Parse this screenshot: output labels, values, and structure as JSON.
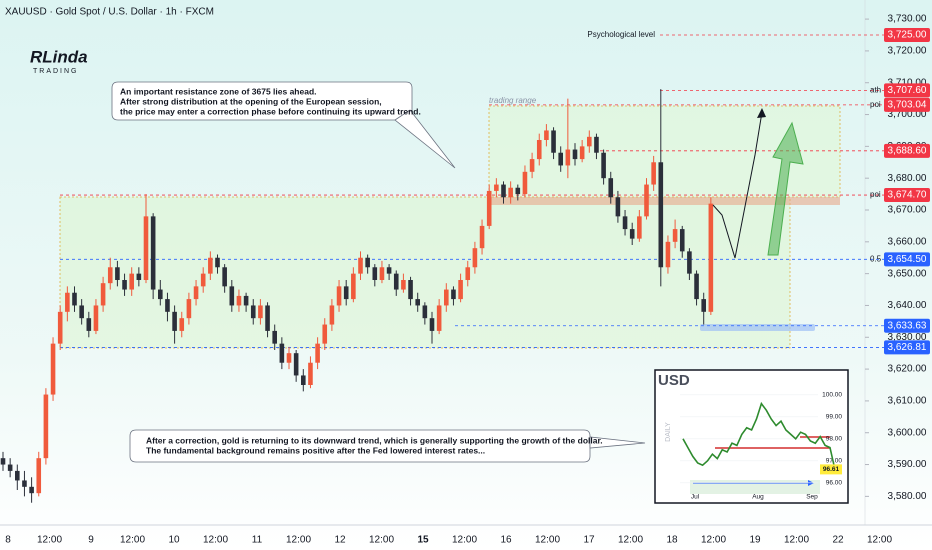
{
  "logo": {
    "name": "RLinda",
    "tagline": "TRADING"
  },
  "chart_data": [
    {
      "type": "candlestick",
      "title": "XAUUSD · Gold Spot / U.S. Dollar · 1h · FXCM",
      "up_color": "#f05a3c",
      "down_color": "#2b2f3a",
      "ylim": [
        3571,
        3736
      ],
      "yticks": [
        {
          "value": 3580,
          "label": "3,580.00"
        },
        {
          "value": 3590,
          "label": "3,590.00"
        },
        {
          "value": 3600,
          "label": "3,600.00"
        },
        {
          "value": 3610,
          "label": "3,610.00"
        },
        {
          "value": 3620,
          "label": "3,620.00"
        },
        {
          "value": 3630,
          "label": "3,630.00"
        },
        {
          "value": 3640,
          "label": "3,640.00"
        },
        {
          "value": 3650,
          "label": "3,650.00"
        },
        {
          "value": 3660,
          "label": "3,660.00"
        },
        {
          "value": 3670,
          "label": "3,670.00"
        },
        {
          "value": 3680,
          "label": "3,680.00"
        },
        {
          "value": 3690,
          "label": "3,690.00"
        },
        {
          "value": 3700,
          "label": "3,700.00"
        },
        {
          "value": 3710,
          "label": "3,710.00"
        },
        {
          "value": 3720,
          "label": "3,720.00"
        },
        {
          "value": 3730,
          "label": "3,730.00"
        }
      ],
      "time_labels": [
        "8",
        "12:00",
        "9",
        "12:00",
        "10",
        "12:00",
        "11",
        "12:00",
        "12",
        "12:00",
        "15",
        "12:00",
        "16",
        "12:00",
        "17",
        "12:00",
        "18",
        "12:00",
        "19",
        "12:00",
        "22",
        "12:00"
      ],
      "candles": [
        [
          3592,
          3594,
          3588,
          3590
        ],
        [
          3590,
          3592,
          3586,
          3588
        ],
        [
          3588,
          3590,
          3582,
          3585
        ],
        [
          3585,
          3588,
          3580,
          3583
        ],
        [
          3583,
          3586,
          3578,
          3581
        ],
        [
          3581,
          3594,
          3580,
          3592
        ],
        [
          3592,
          3614,
          3590,
          3612
        ],
        [
          3612,
          3630,
          3610,
          3628
        ],
        [
          3628,
          3640,
          3626,
          3638
        ],
        [
          3638,
          3646,
          3635,
          3644
        ],
        [
          3644,
          3646,
          3638,
          3640
        ],
        [
          3640,
          3642,
          3634,
          3636
        ],
        [
          3636,
          3638,
          3630,
          3632
        ],
        [
          3632,
          3642,
          3631,
          3640
        ],
        [
          3640,
          3649,
          3638,
          3647
        ],
        [
          3647,
          3655,
          3645,
          3652
        ],
        [
          3652,
          3654,
          3646,
          3648
        ],
        [
          3648,
          3650,
          3643,
          3645
        ],
        [
          3645,
          3652,
          3643,
          3650
        ],
        [
          3650,
          3652,
          3646,
          3648
        ],
        [
          3648,
          3675,
          3647,
          3668
        ],
        [
          3668,
          3669,
          3642,
          3645
        ],
        [
          3645,
          3648,
          3640,
          3642
        ],
        [
          3642,
          3644,
          3635,
          3638
        ],
        [
          3638,
          3640,
          3628,
          3632
        ],
        [
          3632,
          3638,
          3630,
          3636
        ],
        [
          3636,
          3644,
          3634,
          3642
        ],
        [
          3642,
          3648,
          3640,
          3646
        ],
        [
          3646,
          3652,
          3644,
          3650
        ],
        [
          3650,
          3657,
          3648,
          3655
        ],
        [
          3655,
          3656,
          3650,
          3652
        ],
        [
          3652,
          3653,
          3644,
          3646
        ],
        [
          3646,
          3648,
          3638,
          3640
        ],
        [
          3640,
          3645,
          3638,
          3643
        ],
        [
          3643,
          3644,
          3638,
          3640
        ],
        [
          3640,
          3642,
          3634,
          3636
        ],
        [
          3636,
          3642,
          3634,
          3640
        ],
        [
          3640,
          3641,
          3630,
          3632
        ],
        [
          3632,
          3634,
          3626,
          3628
        ],
        [
          3628,
          3630,
          3620,
          3622
        ],
        [
          3622,
          3627,
          3620,
          3625
        ],
        [
          3625,
          3626,
          3616,
          3618
        ],
        [
          3618,
          3620,
          3613,
          3615
        ],
        [
          3615,
          3624,
          3614,
          3622
        ],
        [
          3622,
          3630,
          3620,
          3628
        ],
        [
          3628,
          3636,
          3626,
          3634
        ],
        [
          3634,
          3642,
          3632,
          3640
        ],
        [
          3640,
          3648,
          3638,
          3646
        ],
        [
          3646,
          3648,
          3640,
          3642
        ],
        [
          3642,
          3652,
          3641,
          3650
        ],
        [
          3650,
          3657,
          3648,
          3655
        ],
        [
          3655,
          3656,
          3650,
          3652
        ],
        [
          3652,
          3653,
          3646,
          3648
        ],
        [
          3648,
          3654,
          3647,
          3652
        ],
        [
          3652,
          3653,
          3648,
          3650
        ],
        [
          3650,
          3651,
          3643,
          3645
        ],
        [
          3645,
          3650,
          3644,
          3648
        ],
        [
          3648,
          3649,
          3640,
          3642
        ],
        [
          3642,
          3644,
          3638,
          3640
        ],
        [
          3640,
          3641,
          3634,
          3636
        ],
        [
          3636,
          3638,
          3628,
          3632
        ],
        [
          3632,
          3642,
          3631,
          3640
        ],
        [
          3640,
          3647,
          3638,
          3645
        ],
        [
          3645,
          3646,
          3640,
          3642
        ],
        [
          3642,
          3650,
          3641,
          3648
        ],
        [
          3648,
          3654,
          3646,
          3652
        ],
        [
          3652,
          3660,
          3650,
          3658
        ],
        [
          3658,
          3667,
          3656,
          3665
        ],
        [
          3665,
          3678,
          3664,
          3676
        ],
        [
          3676,
          3680,
          3674,
          3678
        ],
        [
          3678,
          3679,
          3672,
          3674
        ],
        [
          3674,
          3679,
          3672,
          3677
        ],
        [
          3677,
          3678,
          3673,
          3675
        ],
        [
          3675,
          3684,
          3674,
          3682
        ],
        [
          3682,
          3688,
          3680,
          3686
        ],
        [
          3686,
          3694,
          3684,
          3692
        ],
        [
          3692,
          3697,
          3690,
          3695
        ],
        [
          3695,
          3696,
          3686,
          3688
        ],
        [
          3688,
          3690,
          3682,
          3684
        ],
        [
          3684,
          3705,
          3680,
          3689
        ],
        [
          3689,
          3691,
          3684,
          3686
        ],
        [
          3686,
          3692,
          3685,
          3690
        ],
        [
          3690,
          3695,
          3688,
          3693
        ],
        [
          3693,
          3694,
          3686,
          3688
        ],
        [
          3688,
          3689,
          3678,
          3680
        ],
        [
          3680,
          3682,
          3672,
          3674
        ],
        [
          3674,
          3676,
          3666,
          3668
        ],
        [
          3668,
          3670,
          3662,
          3664
        ],
        [
          3664,
          3666,
          3659,
          3661
        ],
        [
          3661,
          3670,
          3660,
          3668
        ],
        [
          3668,
          3680,
          3667,
          3678
        ],
        [
          3678,
          3687,
          3676,
          3685
        ],
        [
          3685,
          3708,
          3646,
          3652
        ],
        [
          3652,
          3662,
          3650,
          3660
        ],
        [
          3660,
          3667,
          3658,
          3664
        ],
        [
          3664,
          3665,
          3655,
          3657
        ],
        [
          3657,
          3658,
          3648,
          3650
        ],
        [
          3650,
          3651,
          3640,
          3642
        ],
        [
          3642,
          3644,
          3634,
          3638
        ],
        [
          3638,
          3674,
          3637,
          3672
        ]
      ],
      "levels": [
        {
          "value": 3725,
          "label": "3,725.00",
          "color": "#f23645",
          "note": "Psychological level"
        },
        {
          "value": 3707.6,
          "label": "3,707.60",
          "color": "#f23645",
          "tag": "ath"
        },
        {
          "value": 3703.04,
          "label": "3,703.04",
          "color": "#f23645",
          "tag": "poi"
        },
        {
          "value": 3688.6,
          "label": "3,688.60",
          "color": "#f23645"
        },
        {
          "value": 3674.7,
          "label": "3,674.70",
          "color": "#f23645",
          "tag": "poi"
        },
        {
          "value": 3654.5,
          "label": "3,654.50",
          "color": "#2962ff",
          "tag": "0.5"
        },
        {
          "value": 3633.63,
          "label": "3,633.63",
          "color": "#2962ff"
        },
        {
          "value": 3626.81,
          "label": "3,626.81",
          "color": "#2962ff"
        }
      ],
      "zone_label": "trading range",
      "annotations": [
        {
          "lines": [
            "An important resistance zone of 3675 lies ahead.",
            "After strong distribution at the opening of the European session,",
            "the price may enter a correction phase before continuing its upward trend."
          ]
        },
        {
          "lines": [
            "After a correction, gold is returning to its downward trend, which is generally supporting the growth of the dollar.",
            "The fundamental background remains positive after the Fed lowered interest rates..."
          ]
        }
      ]
    },
    {
      "type": "line",
      "title": "USD",
      "side_label": "DAILY",
      "color": "#2e8b2e",
      "ylim": [
        95.4,
        100.9
      ],
      "yticks": [
        {
          "value": 100,
          "label": "100.00"
        },
        {
          "value": 99,
          "label": "99.00"
        },
        {
          "value": 98,
          "label": "98.00"
        },
        {
          "value": 97,
          "label": "97.00"
        },
        {
          "value": 96,
          "label": "96.00"
        }
      ],
      "time_labels": [
        "Jul",
        "Aug",
        "Sep"
      ],
      "values": [
        98.0,
        97.6,
        97.2,
        96.9,
        96.8,
        97.0,
        97.3,
        97.1,
        97.5,
        97.4,
        97.8,
        97.7,
        98.2,
        98.5,
        98.4,
        98.9,
        99.6,
        99.3,
        98.9,
        98.6,
        98.8,
        98.4,
        98.2,
        98.0,
        98.3,
        98.2,
        97.9,
        97.8,
        98.1,
        97.7,
        97.6,
        96.61
      ],
      "price_tag": {
        "value": 96.61,
        "label": "96.61"
      }
    }
  ]
}
